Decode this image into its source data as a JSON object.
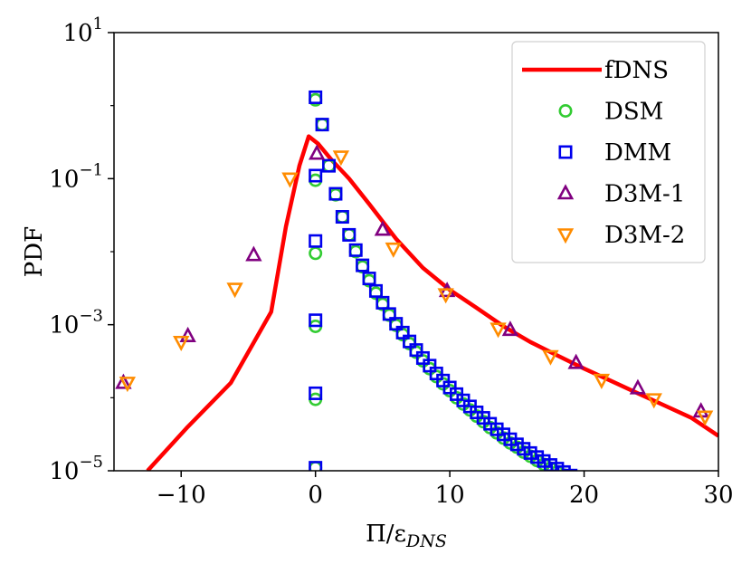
{
  "chart_data": {
    "type": "scatter",
    "title": "",
    "ylabel": "PDF",
    "xlabel": {
      "base": "Π/ε",
      "subscript": "DNS"
    },
    "x_ticks": [
      -10,
      0,
      10,
      20,
      30
    ],
    "x_tick_labels": [
      "−10",
      "0",
      "10",
      "20",
      "30"
    ],
    "y_ticks": [
      10.0,
      0.1,
      0.001,
      1e-05
    ],
    "y_tick_labels": [
      {
        "base": "10",
        "exp": "1"
      },
      {
        "base": "10",
        "exp": "−1"
      },
      {
        "base": "10",
        "exp": "−3"
      },
      {
        "base": "10",
        "exp": "−5"
      }
    ],
    "xlim": [
      -15,
      30
    ],
    "ylim": [
      1e-05,
      10
    ],
    "yscale": "log",
    "grid": false,
    "legend_position": "top-right",
    "series": [
      {
        "name": "fDNS",
        "kind": "line",
        "color": "#ff0000",
        "points": [
          [
            -12.5,
            1e-05
          ],
          [
            -9.5,
            4e-05
          ],
          [
            -6.3,
            0.00016
          ],
          [
            -3.3,
            0.0015
          ],
          [
            -2.2,
            0.022
          ],
          [
            -1.2,
            0.15
          ],
          [
            -0.5,
            0.38
          ],
          [
            0.2,
            0.3
          ],
          [
            1.2,
            0.18
          ],
          [
            2.5,
            0.1
          ],
          [
            4,
            0.045
          ],
          [
            6,
            0.015
          ],
          [
            8,
            0.006
          ],
          [
            10,
            0.003
          ],
          [
            12,
            0.0017
          ],
          [
            14,
            0.00095
          ],
          [
            16,
            0.00058
          ],
          [
            18,
            0.00038
          ],
          [
            20,
            0.00025
          ],
          [
            22,
            0.00017
          ],
          [
            24,
            0.000115
          ],
          [
            26,
            7.8e-05
          ],
          [
            28,
            5.3e-05
          ],
          [
            30,
            3e-05
          ]
        ]
      },
      {
        "name": "DSM",
        "kind": "marker",
        "marker": "circle",
        "color": "#33cc33",
        "points": [
          [
            0,
            1.1e-05
          ],
          [
            0,
            9.5e-05
          ],
          [
            0,
            0.00095
          ],
          [
            0,
            0.0095
          ],
          [
            0,
            0.095
          ],
          [
            0,
            1.2
          ],
          [
            0.5,
            0.55
          ],
          [
            1,
            0.15
          ],
          [
            1.5,
            0.06
          ],
          [
            2,
            0.03
          ],
          [
            2.5,
            0.017
          ],
          [
            3,
            0.01
          ],
          [
            3.5,
            0.0062
          ],
          [
            4,
            0.004
          ],
          [
            4.5,
            0.0027
          ],
          [
            5,
            0.0019
          ],
          [
            5.5,
            0.00135
          ],
          [
            6,
            0.00098
          ],
          [
            6.5,
            0.00073
          ],
          [
            7,
            0.00055
          ],
          [
            7.5,
            0.00042
          ],
          [
            8,
            0.00032
          ],
          [
            8.5,
            0.00025
          ],
          [
            9,
            0.000195
          ],
          [
            9.5,
            0.000155
          ],
          [
            10,
            0.000125
          ],
          [
            10.5,
            0.0001
          ],
          [
            11,
            8.2e-05
          ],
          [
            11.5,
            6.8e-05
          ],
          [
            12,
            5.6e-05
          ],
          [
            12.5,
            4.7e-05
          ],
          [
            13,
            3.9e-05
          ],
          [
            13.5,
            3.3e-05
          ],
          [
            14,
            2.8e-05
          ],
          [
            14.5,
            2.4e-05
          ],
          [
            15,
            2.1e-05
          ],
          [
            15.5,
            1.8e-05
          ],
          [
            16,
            1.58e-05
          ],
          [
            16.5,
            1.38e-05
          ],
          [
            17,
            1.22e-05
          ],
          [
            17.5,
            1.08e-05
          ],
          [
            18,
            9.7e-06
          ],
          [
            18.5,
            8.7e-06
          ],
          [
            19,
            7.9e-06
          ]
        ]
      },
      {
        "name": "DMM",
        "kind": "marker",
        "marker": "square",
        "color": "#0000ee",
        "points": [
          [
            0,
            1.1e-05
          ],
          [
            0,
            0.000115
          ],
          [
            0,
            0.00115
          ],
          [
            0,
            0.014
          ],
          [
            0,
            0.11
          ],
          [
            0,
            1.3
          ],
          [
            0.5,
            0.55
          ],
          [
            1,
            0.15
          ],
          [
            1.5,
            0.062
          ],
          [
            2,
            0.03
          ],
          [
            2.5,
            0.017
          ],
          [
            3,
            0.0105
          ],
          [
            3.5,
            0.0065
          ],
          [
            4,
            0.0043
          ],
          [
            4.5,
            0.0029
          ],
          [
            5,
            0.002
          ],
          [
            5.5,
            0.0014
          ],
          [
            6,
            0.00103
          ],
          [
            6.5,
            0.00078
          ],
          [
            7,
            0.00059
          ],
          [
            7.5,
            0.00045
          ],
          [
            8,
            0.00035
          ],
          [
            8.5,
            0.000275
          ],
          [
            9,
            0.000215
          ],
          [
            9.5,
            0.000172
          ],
          [
            10,
            0.000138
          ],
          [
            10.5,
            0.000112
          ],
          [
            11,
            9.2e-05
          ],
          [
            11.5,
            7.6e-05
          ],
          [
            12,
            6.3e-05
          ],
          [
            12.5,
            5.3e-05
          ],
          [
            13,
            4.4e-05
          ],
          [
            13.5,
            3.7e-05
          ],
          [
            14,
            3.15e-05
          ],
          [
            14.5,
            2.7e-05
          ],
          [
            15,
            2.3e-05
          ],
          [
            15.5,
            2e-05
          ],
          [
            16,
            1.75e-05
          ],
          [
            16.5,
            1.54e-05
          ],
          [
            17,
            1.36e-05
          ],
          [
            17.5,
            1.2e-05
          ],
          [
            18,
            1.07e-05
          ],
          [
            18.5,
            9.6e-06
          ],
          [
            19,
            8.6e-06
          ],
          [
            19.5,
            7.8e-06
          ],
          [
            20,
            7e-06
          ]
        ]
      },
      {
        "name": "D3M-1",
        "kind": "marker",
        "marker": "triangle-up",
        "color": "#800080",
        "points": [
          [
            -14.3,
            0.00016
          ],
          [
            -9.5,
            0.0007
          ],
          [
            -4.6,
            0.009
          ],
          [
            0.1,
            0.22
          ],
          [
            5,
            0.02
          ],
          [
            9.8,
            0.0029
          ],
          [
            14.5,
            0.00085
          ],
          [
            19.4,
            0.0003
          ],
          [
            24,
            0.000135
          ],
          [
            28.7,
            6.5e-05
          ]
        ]
      },
      {
        "name": "D3M-2",
        "kind": "marker",
        "marker": "triangle-down",
        "color": "#ff8c00",
        "points": [
          [
            -14,
            0.00016
          ],
          [
            -10,
            0.00058
          ],
          [
            -6,
            0.0031
          ],
          [
            -1.9,
            0.1
          ],
          [
            1.9,
            0.2
          ],
          [
            5.8,
            0.011
          ],
          [
            9.7,
            0.0026
          ],
          [
            13.6,
            0.00088
          ],
          [
            17.5,
            0.00037
          ],
          [
            21.3,
            0.000175
          ],
          [
            25.2,
            9.5e-05
          ],
          [
            29,
            5.5e-05
          ]
        ]
      }
    ]
  }
}
